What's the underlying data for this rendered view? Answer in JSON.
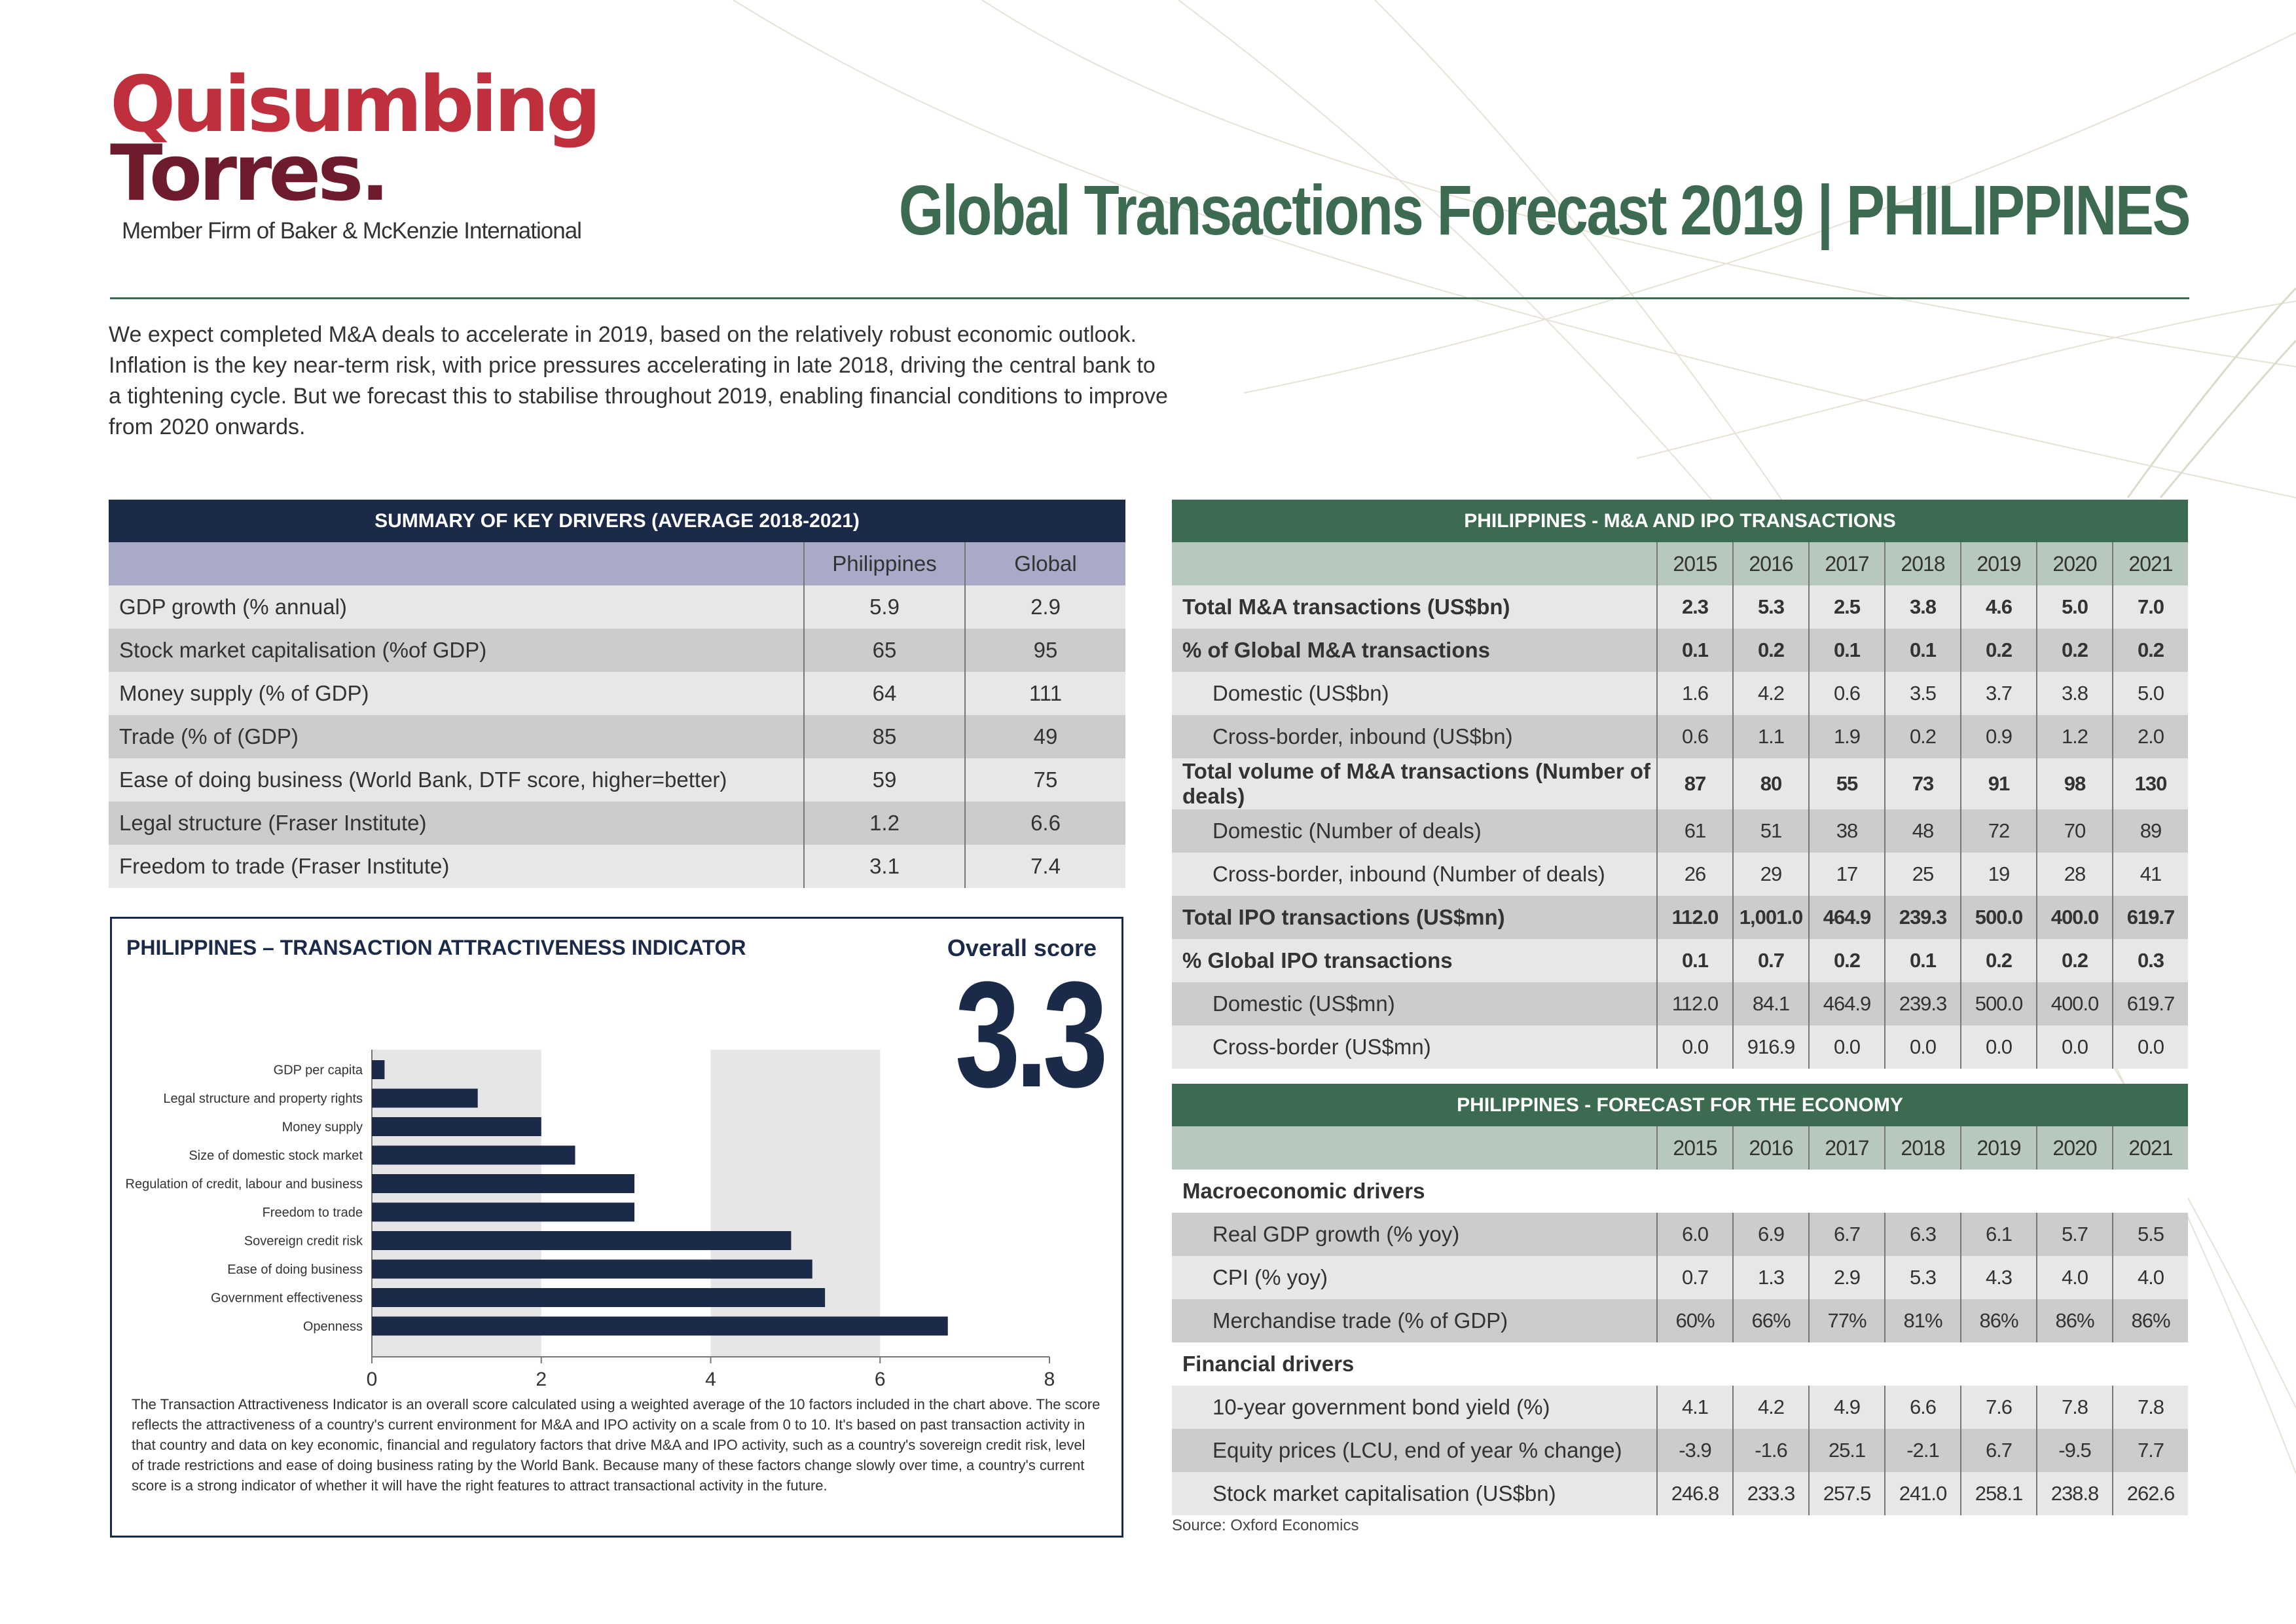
{
  "logo": {
    "line1": "Quisumbing",
    "line2": "Torres.",
    "subtitle": "Member Firm of Baker & McKenzie International"
  },
  "title": "Global Transactions Forecast 2019  |  PHILIPPINES",
  "intro": "We expect completed M&A deals to accelerate in 2019, based on the relatively robust economic outlook. Inflation is the key near-term risk, with price pressures accelerating in late 2018, driving the central bank to a tightening cycle. But we forecast this to stabilise throughout 2019, enabling financial conditions to improve from 2020 onwards.",
  "key_drivers": {
    "title": "SUMMARY OF KEY DRIVERS (AVERAGE 2018-2021)",
    "columns": [
      "Philippines",
      "Global"
    ],
    "rows": [
      {
        "label": "GDP growth (% annual)",
        "ph": "5.9",
        "gl": "2.9"
      },
      {
        "label": "Stock market capitalisation (%of GDP)",
        "ph": "65",
        "gl": "95"
      },
      {
        "label": "Money supply (% of GDP)",
        "ph": "64",
        "gl": "111"
      },
      {
        "label": "Trade (% of (GDP)",
        "ph": "85",
        "gl": "49"
      },
      {
        "label": "Ease of doing business (World Bank, DTF score, higher=better)",
        "ph": "59",
        "gl": "75"
      },
      {
        "label": "Legal structure (Fraser Institute)",
        "ph": "1.2",
        "gl": "6.6"
      },
      {
        "label": "Freedom to trade (Fraser Institute)",
        "ph": "3.1",
        "gl": "7.4"
      }
    ]
  },
  "ma_ipo": {
    "title": "PHILIPPINES - M&A AND IPO TRANSACTIONS",
    "years": [
      "2015",
      "2016",
      "2017",
      "2018",
      "2019",
      "2020",
      "2021"
    ],
    "rows": [
      {
        "label": "Total M&A transactions (US$bn)",
        "bold": true,
        "values": [
          "2.3",
          "5.3",
          "2.5",
          "3.8",
          "4.6",
          "5.0",
          "7.0"
        ]
      },
      {
        "label": "% of Global M&A transactions",
        "bold": true,
        "values": [
          "0.1",
          "0.2",
          "0.1",
          "0.1",
          "0.2",
          "0.2",
          "0.2"
        ]
      },
      {
        "label": "Domestic (US$bn)",
        "bold": false,
        "values": [
          "1.6",
          "4.2",
          "0.6",
          "3.5",
          "3.7",
          "3.8",
          "5.0"
        ]
      },
      {
        "label": "Cross-border, inbound (US$bn)",
        "bold": false,
        "values": [
          "0.6",
          "1.1",
          "1.9",
          "0.2",
          "0.9",
          "1.2",
          "2.0"
        ]
      },
      {
        "label": "Total volume of M&A transactions (Number of deals)",
        "bold": true,
        "values": [
          "87",
          "80",
          "55",
          "73",
          "91",
          "98",
          "130"
        ]
      },
      {
        "label": "Domestic (Number of deals)",
        "bold": false,
        "values": [
          "61",
          "51",
          "38",
          "48",
          "72",
          "70",
          "89"
        ]
      },
      {
        "label": "Cross-border, inbound (Number of deals)",
        "bold": false,
        "values": [
          "26",
          "29",
          "17",
          "25",
          "19",
          "28",
          "41"
        ]
      },
      {
        "label": "Total IPO transactions (US$mn)",
        "bold": true,
        "values": [
          "112.0",
          "1,001.0",
          "464.9",
          "239.3",
          "500.0",
          "400.0",
          "619.7"
        ]
      },
      {
        "label": "% Global IPO transactions",
        "bold": true,
        "values": [
          "0.1",
          "0.7",
          "0.2",
          "0.1",
          "0.2",
          "0.2",
          "0.3"
        ]
      },
      {
        "label": "Domestic (US$mn)",
        "bold": false,
        "values": [
          "112.0",
          "84.1",
          "464.9",
          "239.3",
          "500.0",
          "400.0",
          "619.7"
        ]
      },
      {
        "label": "Cross-border (US$mn)",
        "bold": false,
        "values": [
          "0.0",
          "916.9",
          "0.0",
          "0.0",
          "0.0",
          "0.0",
          "0.0"
        ]
      }
    ]
  },
  "economy": {
    "title": "PHILIPPINES - FORECAST FOR THE ECONOMY",
    "years": [
      "2015",
      "2016",
      "2017",
      "2018",
      "2019",
      "2020",
      "2021"
    ],
    "sections": [
      {
        "heading": "Macroeconomic drivers",
        "rows": [
          {
            "label": "Real GDP growth (% yoy)",
            "values": [
              "6.0",
              "6.9",
              "6.7",
              "6.3",
              "6.1",
              "5.7",
              "5.5"
            ]
          },
          {
            "label": "CPI (% yoy)",
            "values": [
              "0.7",
              "1.3",
              "2.9",
              "5.3",
              "4.3",
              "4.0",
              "4.0"
            ]
          },
          {
            "label": "Merchandise trade (% of GDP)",
            "values": [
              "60%",
              "66%",
              "77%",
              "81%",
              "86%",
              "86%",
              "86%"
            ]
          }
        ]
      },
      {
        "heading": "Financial drivers",
        "rows": [
          {
            "label": "10-year government bond yield (%)",
            "values": [
              "4.1",
              "4.2",
              "4.9",
              "6.6",
              "7.6",
              "7.8",
              "7.8"
            ]
          },
          {
            "label": "Equity prices (LCU, end of year % change)",
            "values": [
              "-3.9",
              "-1.6",
              "25.1",
              "-2.1",
              "6.7",
              "-9.5",
              "7.7"
            ]
          },
          {
            "label": "Stock market capitalisation (US$bn)",
            "values": [
              "246.8",
              "233.3",
              "257.5",
              "241.0",
              "258.1",
              "238.8",
              "262.6"
            ]
          }
        ]
      }
    ],
    "source": "Source: Oxford Economics"
  },
  "indicator": {
    "title": "PHILIPPINES – TRANSACTION ATTRACTIVENESS INDICATOR",
    "overall_label": "Overall score",
    "overall_score": "3.3",
    "note": "The Transaction Attractiveness Indicator is an overall score calculated using a weighted average of the 10 factors included in the chart above. The score reflects the attractiveness of a country's current environment for M&A and IPO activity on a scale from 0 to 10. It's based on past transaction activity in that country and data on key economic, financial and regulatory factors that drive M&A and IPO activity, such as a country's sovereign credit risk, level of trade restrictions and ease of doing business rating by the World Bank. Because many of these factors change slowly over time, a country's current score is a strong indicator of whether it will have the right features to attract transactional activity in the future."
  },
  "chart_data": {
    "type": "bar",
    "orientation": "horizontal",
    "categories": [
      "GDP per capita",
      "Legal structure and property rights",
      "Money supply",
      "Size of domestic stock market",
      "Regulation of credit, labour and business",
      "Freedom to trade",
      "Sovereign credit risk",
      "Ease of doing business",
      "Government effectiveness",
      "Openness"
    ],
    "values": [
      0.15,
      1.25,
      2.0,
      2.4,
      3.1,
      3.1,
      4.95,
      5.2,
      5.35,
      6.8
    ],
    "xlim": [
      0,
      8
    ],
    "xticks": [
      "0",
      "2",
      "4",
      "6",
      "8"
    ],
    "bar_color": "#1b2a48",
    "band_color": "#e6e6e6"
  }
}
